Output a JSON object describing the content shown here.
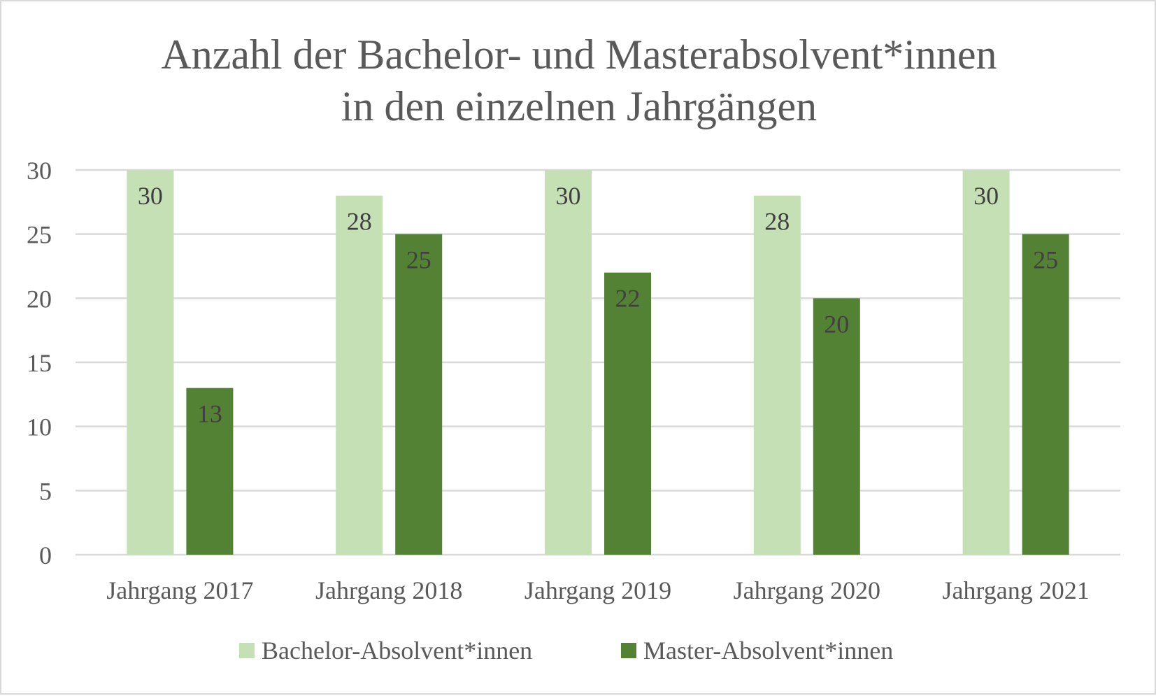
{
  "chart_data": {
    "type": "bar",
    "title": [
      "Anzahl der Bachelor- und Masterabsolvent*innen",
      "in den einzelnen Jahrgängen"
    ],
    "categories": [
      "Jahrgang 2017",
      "Jahrgang 2018",
      "Jahrgang 2019",
      "Jahrgang 2020",
      "Jahrgang 2021"
    ],
    "series": [
      {
        "name": "Bachelor-Absolvent*innen",
        "values": [
          30,
          28,
          30,
          28,
          30
        ],
        "color": "#c5e0b4"
      },
      {
        "name": "Master-Absolvent*innen",
        "values": [
          13,
          25,
          22,
          20,
          25
        ],
        "color": "#548235"
      }
    ],
    "ylim": [
      0,
      30
    ],
    "yticks": [
      0,
      5,
      10,
      15,
      20,
      25,
      30
    ],
    "grid": true,
    "gridColor": "#d9d9d9",
    "legend_position": "bottom",
    "data_labels": "inside-end"
  }
}
